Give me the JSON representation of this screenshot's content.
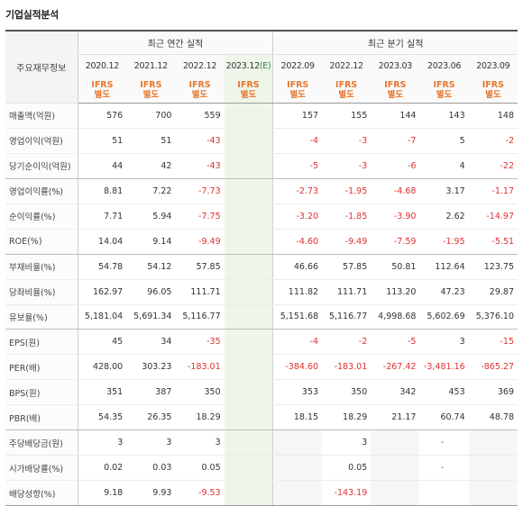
{
  "title": "기업실적분석",
  "header": {
    "label": "주요재무정보",
    "annual_group": "최근 연간 실적",
    "quarter_group": "최근 분기 실적",
    "ifrs_top": "IFRS",
    "ifrs_bottom": "별도",
    "annual_periods": [
      "2020.12",
      "2021.12",
      "2022.12",
      "2023.12"
    ],
    "estimate_mark": "(E)",
    "quarter_periods": [
      "2022.09",
      "2022.12",
      "2023.03",
      "2023.06",
      "2023.09"
    ]
  },
  "rows": [
    {
      "label": "매출액(억원)",
      "values": [
        "576",
        "700",
        "559",
        "",
        "157",
        "155",
        "144",
        "143",
        "148"
      ]
    },
    {
      "label": "영업이익(억원)",
      "values": [
        "51",
        "51",
        "-43",
        "",
        "-4",
        "-3",
        "-7",
        "5",
        "-2"
      ]
    },
    {
      "label": "당기순이익(억원)",
      "values": [
        "44",
        "42",
        "-43",
        "",
        "-5",
        "-3",
        "-6",
        "4",
        "-22"
      ]
    },
    {
      "label": "영업이익률(%)",
      "values": [
        "8.81",
        "7.22",
        "-7.73",
        "",
        "-2.73",
        "-1.95",
        "-4.68",
        "3.17",
        "-1.17"
      ]
    },
    {
      "label": "순이익률(%)",
      "values": [
        "7.71",
        "5.94",
        "-7.75",
        "",
        "-3.20",
        "-1.85",
        "-3.90",
        "2.62",
        "-14.97"
      ]
    },
    {
      "label": "ROE(%)",
      "values": [
        "14.04",
        "9.14",
        "-9.49",
        "",
        "-4.60",
        "-9.49",
        "-7.59",
        "-1.95",
        "-5.51"
      ]
    },
    {
      "label": "부채비율(%)",
      "values": [
        "54.78",
        "54.12",
        "57.85",
        "",
        "46.66",
        "57.85",
        "50.81",
        "112.64",
        "123.75"
      ]
    },
    {
      "label": "당좌비율(%)",
      "values": [
        "162.97",
        "96.05",
        "111.71",
        "",
        "111.82",
        "111.71",
        "113.20",
        "47.23",
        "29.87"
      ]
    },
    {
      "label": "유보율(%)",
      "values": [
        "5,181.04",
        "5,691.34",
        "5,116.77",
        "",
        "5,151.68",
        "5,116.77",
        "4,998.68",
        "5,602.69",
        "5,376.10"
      ]
    },
    {
      "label": "EPS(원)",
      "values": [
        "45",
        "34",
        "-35",
        "",
        "-4",
        "-2",
        "-5",
        "3",
        "-15"
      ]
    },
    {
      "label": "PER(배)",
      "values": [
        "428.00",
        "303.23",
        "-183.01",
        "",
        "-384.60",
        "-183.01",
        "-267.42",
        "-3,481.16",
        "-865.27"
      ]
    },
    {
      "label": "BPS(원)",
      "values": [
        "351",
        "387",
        "350",
        "",
        "353",
        "350",
        "342",
        "453",
        "369"
      ]
    },
    {
      "label": "PBR(배)",
      "values": [
        "54.35",
        "26.35",
        "18.29",
        "",
        "18.15",
        "18.29",
        "21.17",
        "60.74",
        "48.78"
      ]
    },
    {
      "label": "주당배당금(원)",
      "values": [
        "3",
        "3",
        "3",
        "",
        "",
        "3",
        "",
        "-",
        ""
      ]
    },
    {
      "label": "시가배당률(%)",
      "values": [
        "0.02",
        "0.03",
        "0.05",
        "",
        "",
        "0.05",
        "",
        "-",
        ""
      ]
    },
    {
      "label": "배당성향(%)",
      "values": [
        "9.18",
        "9.93",
        "-9.53",
        "",
        "",
        "-143.19",
        "",
        "",
        ""
      ]
    }
  ],
  "colors": {
    "negative": "#e03030",
    "ifrs": "#e8762d",
    "estimate": "#2c8a3d"
  }
}
